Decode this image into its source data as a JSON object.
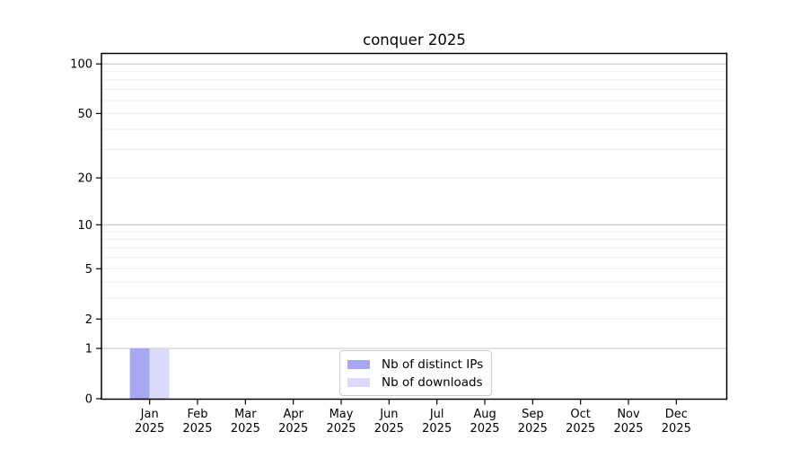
{
  "figure": {
    "background": "#ffffff"
  },
  "chart_data": {
    "type": "bar",
    "title": "conquer 2025",
    "categories": [
      "Jan",
      "Feb",
      "Mar",
      "Apr",
      "May",
      "Jun",
      "Jul",
      "Aug",
      "Sep",
      "Oct",
      "Nov",
      "Dec"
    ],
    "x_tick_second_line": "2025",
    "series": [
      {
        "name": "Nb of distinct IPs",
        "color": "#a7a8f3",
        "values": [
          1,
          0,
          0,
          0,
          0,
          0,
          0,
          0,
          0,
          0,
          0,
          0
        ]
      },
      {
        "name": "Nb of downloads",
        "color": "#dbdbf9",
        "values": [
          1,
          0,
          0,
          0,
          0,
          0,
          0,
          0,
          0,
          0,
          0,
          0
        ]
      }
    ],
    "yscale": "log1p",
    "ylim": [
      0,
      115
    ],
    "yticks": [
      0,
      1,
      2,
      5,
      10,
      20,
      50,
      100
    ],
    "major_gridlines": [
      1,
      10,
      100
    ],
    "minor_gridlines": [
      2,
      3,
      4,
      5,
      6,
      7,
      8,
      9,
      20,
      30,
      40,
      50,
      60,
      70,
      80,
      90
    ],
    "grid": true,
    "legend_position": "lower center",
    "colors": {
      "axis": "#000000",
      "tick_label": "#000000",
      "grid_major": "#c6c6c6",
      "grid_minor": "#ededed"
    }
  }
}
